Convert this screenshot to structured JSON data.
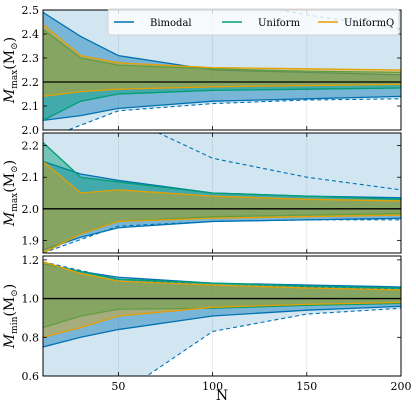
{
  "chart_data": {
    "type": "area",
    "xlabel": "N",
    "legend": {
      "placement": "top-right",
      "entries": [
        {
          "name": "Bimodal",
          "color": "#0072b2"
        },
        {
          "name": "Uniform",
          "color": "#009e73"
        },
        {
          "name": "UniformQ",
          "color": "#e69f00"
        }
      ]
    },
    "xlim": [
      10,
      200
    ],
    "xticks": [
      50,
      100,
      150,
      200
    ],
    "panels": [
      {
        "ylabel_main": "M",
        "ylabel_sub": "max",
        "ylabel_tail": "(M",
        "ylabel_sun": "⊙",
        "ylabel_close": ")",
        "ylim": [
          2.0,
          2.5
        ],
        "yticks": [
          2.0,
          2.1,
          2.2,
          2.3,
          2.4,
          2.5
        ],
        "reference": 2.2,
        "light_band": {
          "x": [
            10,
            50,
            100,
            150,
            200
          ],
          "lower": [
            1.96,
            2.08,
            2.11,
            2.125,
            2.13
          ],
          "upper": [
            2.62,
            2.62,
            2.62,
            2.62,
            2.62
          ],
          "lower_dashed": [
            1.96,
            2.08,
            2.11,
            2.125,
            2.13
          ],
          "upper_dashed": [
            2.62,
            2.62,
            2.55,
            2.48,
            2.42
          ]
        },
        "bimodal": {
          "x": [
            10,
            30,
            50,
            100,
            150,
            200
          ],
          "lower": [
            2.04,
            2.06,
            2.09,
            2.12,
            2.13,
            2.14
          ],
          "upper": [
            2.49,
            2.39,
            2.31,
            2.25,
            2.24,
            2.23
          ]
        },
        "uniform": {
          "x": [
            10,
            30,
            50,
            100,
            150,
            200
          ],
          "lower": [
            2.04,
            2.12,
            2.15,
            2.165,
            2.17,
            2.175
          ],
          "upper": [
            2.42,
            2.3,
            2.27,
            2.255,
            2.245,
            2.24
          ]
        },
        "uniformq": {
          "x": [
            10,
            30,
            50,
            100,
            150,
            200
          ],
          "lower": [
            2.14,
            2.16,
            2.17,
            2.18,
            2.185,
            2.19
          ],
          "upper": [
            2.44,
            2.31,
            2.28,
            2.26,
            2.255,
            2.25
          ]
        }
      },
      {
        "ylabel_main": "M",
        "ylabel_sub": "max",
        "ylabel_tail": "(M",
        "ylabel_sun": "⊙",
        "ylabel_close": ")",
        "ylim": [
          1.86,
          2.24
        ],
        "yticks": [
          1.9,
          2.0,
          2.1,
          2.2
        ],
        "reference": 2.0,
        "light_band": {
          "x": [
            10,
            50,
            100,
            150,
            200
          ],
          "lower": [
            1.86,
            1.945,
            1.96,
            1.965,
            1.965
          ],
          "upper": [
            2.3,
            2.3,
            2.3,
            2.3,
            2.3
          ],
          "lower_dashed": [
            1.86,
            1.945,
            1.96,
            1.965,
            1.965
          ],
          "upper_dashed": [
            2.3,
            2.3,
            2.16,
            2.1,
            2.06
          ]
        },
        "bimodal": {
          "x": [
            10,
            30,
            50,
            100,
            150,
            200
          ],
          "lower": [
            1.87,
            1.91,
            1.94,
            1.96,
            1.965,
            1.97
          ],
          "upper": [
            2.15,
            2.11,
            2.09,
            2.05,
            2.04,
            2.035
          ]
        },
        "uniform": {
          "x": [
            10,
            30,
            50,
            100,
            150,
            200
          ],
          "lower": [
            1.86,
            1.92,
            1.96,
            1.975,
            1.98,
            1.985
          ],
          "upper": [
            2.21,
            2.1,
            2.085,
            2.05,
            2.04,
            2.03
          ]
        },
        "uniformq": {
          "x": [
            10,
            30,
            50,
            100,
            150,
            200
          ],
          "lower": [
            1.86,
            1.92,
            1.96,
            1.97,
            1.975,
            1.98
          ],
          "upper": [
            2.15,
            2.05,
            2.06,
            2.04,
            2.03,
            2.025
          ]
        }
      },
      {
        "ylabel_main": "M",
        "ylabel_sub": "min",
        "ylabel_tail": "(M",
        "ylabel_sun": "⊙",
        "ylabel_close": ")",
        "ylim": [
          0.6,
          1.22
        ],
        "yticks": [
          0.6,
          0.8,
          1.0,
          1.2
        ],
        "reference": 1.0,
        "light_band": {
          "x": [
            10,
            50,
            100,
            150,
            200
          ],
          "lower": [
            0.5,
            0.5,
            0.83,
            0.92,
            0.95
          ],
          "upper": [
            1.19,
            1.1,
            1.07,
            1.06,
            1.05
          ],
          "lower_dashed": [
            0.5,
            0.5,
            0.83,
            0.92,
            0.95
          ],
          "upper_dashed": [
            1.19,
            1.1,
            1.07,
            1.06,
            1.05
          ]
        },
        "bimodal": {
          "x": [
            10,
            30,
            50,
            100,
            150,
            200
          ],
          "lower": [
            0.75,
            0.8,
            0.84,
            0.91,
            0.94,
            0.96
          ],
          "upper": [
            1.18,
            1.14,
            1.11,
            1.08,
            1.07,
            1.06
          ]
        },
        "uniform": {
          "x": [
            10,
            30,
            50,
            100,
            150,
            200
          ],
          "lower": [
            0.85,
            0.91,
            0.945,
            0.95,
            0.965,
            0.975
          ],
          "upper": [
            1.18,
            1.14,
            1.1,
            1.08,
            1.065,
            1.055
          ]
        },
        "uniformq": {
          "x": [
            10,
            30,
            50,
            100,
            150,
            200
          ],
          "lower": [
            0.8,
            0.85,
            0.91,
            0.955,
            0.97,
            0.98
          ],
          "upper": [
            1.19,
            1.13,
            1.09,
            1.07,
            1.055,
            1.045
          ]
        }
      }
    ]
  }
}
